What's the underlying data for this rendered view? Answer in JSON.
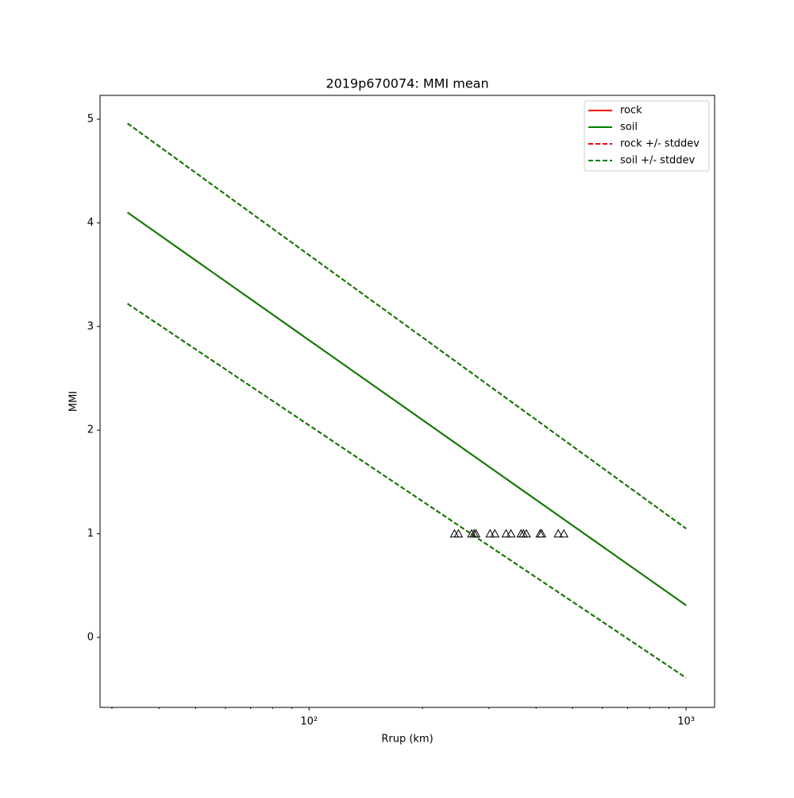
{
  "chart_data": {
    "type": "line",
    "title": "2019p670074: MMI mean",
    "xlabel": "Rrup (km)",
    "ylabel": "MMI",
    "xscale": "log",
    "xlim": [
      27.9,
      1190
    ],
    "ylim": [
      -0.675,
      5.23
    ],
    "xticks": [
      {
        "value": 100,
        "label": "10²"
      },
      {
        "value": 1000,
        "label": "10³"
      }
    ],
    "xminorticks": [
      30,
      40,
      50,
      60,
      70,
      80,
      90,
      200,
      300,
      400,
      500,
      600,
      700,
      800,
      900
    ],
    "yticks": [
      0,
      1,
      2,
      3,
      4,
      5
    ],
    "legend": "upper right",
    "x": [
      33,
      1000
    ],
    "series": [
      {
        "name": "rock",
        "color": "#ff0000",
        "dashed": false,
        "lines": [
          [
            4.1,
            0.31
          ]
        ]
      },
      {
        "name": "soil",
        "color": "#008000",
        "dashed": false,
        "lines": [
          [
            4.1,
            0.31
          ]
        ]
      },
      {
        "name": "rock +/- stddev",
        "color": "#ff0000",
        "dashed": true,
        "lines": [
          [
            4.96,
            1.05
          ],
          [
            3.22,
            -0.39
          ]
        ]
      },
      {
        "name": "soil +/- stddev",
        "color": "#008000",
        "dashed": true,
        "lines": [
          [
            4.96,
            1.05
          ],
          [
            3.22,
            -0.39
          ]
        ]
      }
    ],
    "points": {
      "color": "#000000",
      "x": [
        243,
        249,
        270,
        274,
        277,
        302,
        311,
        333,
        343,
        365,
        370,
        377,
        410,
        414,
        458,
        474
      ],
      "y": [
        1,
        1,
        1,
        1,
        1,
        1,
        1,
        1,
        1,
        1,
        1,
        1,
        1,
        1,
        1,
        1
      ]
    }
  }
}
